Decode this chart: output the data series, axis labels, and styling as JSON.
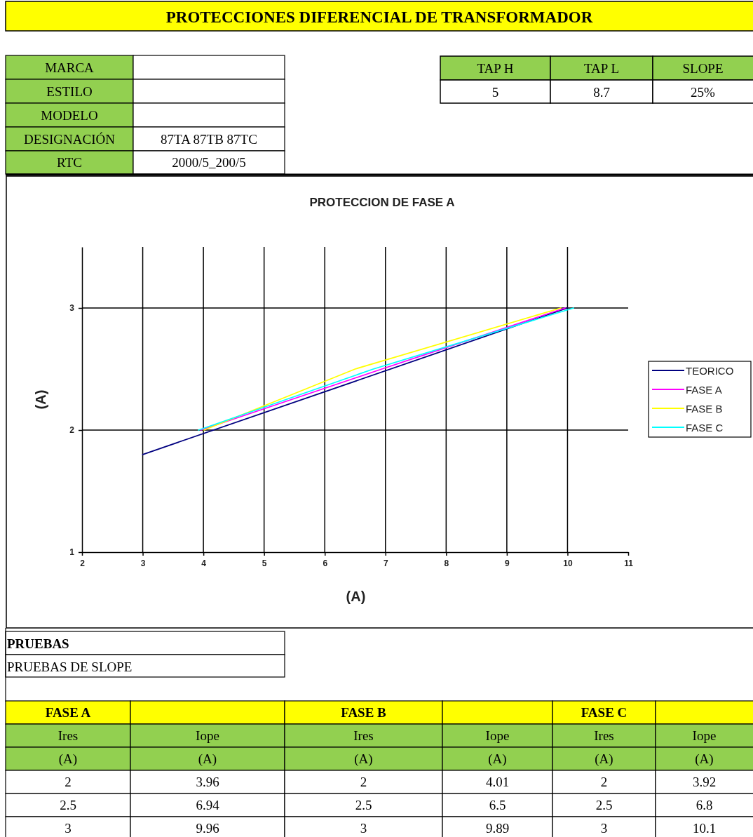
{
  "chart_data": [
    {
      "type": "other",
      "title": "PROTECCIONES DIFERENCIAL DE TRANSFORMADOR",
      "annotations": [
        "MARCA",
        "ESTILO",
        "MODELO",
        "DESIGNACIÓN",
        "RTC",
        "87TA 87TB 87TC",
        "2000/5_200/5",
        "TAP H",
        "TAP L",
        "SLOPE",
        "5",
        "8.7",
        "25%"
      ]
    },
    {
      "type": "line",
      "title": "PROTECCION DE FASE A",
      "xlabel": "(A)",
      "ylabel": "(A)",
      "xlim": [
        2,
        11
      ],
      "ylim": [
        1,
        3.5
      ],
      "xticks": [
        2,
        3,
        4,
        5,
        6,
        7,
        8,
        9,
        10,
        11
      ],
      "yticks": [
        1,
        2,
        3
      ],
      "grid": true,
      "legend": "right",
      "series": [
        {
          "name": "TEORICO",
          "color": "#000080",
          "x": [
            3,
            10
          ],
          "values": [
            1.8,
            3
          ]
        },
        {
          "name": "FASE A",
          "color": "#ff00ff",
          "x": [
            3.96,
            6.94,
            9.96
          ],
          "values": [
            2,
            2.5,
            3
          ]
        },
        {
          "name": "FASE B",
          "color": "#ffff00",
          "x": [
            4.01,
            6.5,
            9.89
          ],
          "values": [
            2,
            2.5,
            3
          ]
        },
        {
          "name": "FASE C",
          "color": "#00ffff",
          "x": [
            3.92,
            6.8,
            10.1
          ],
          "values": [
            2,
            2.5,
            3
          ]
        }
      ]
    },
    {
      "type": "other",
      "title": "PRUEBAS",
      "subtitle": "PRUEBAS DE SLOPE",
      "annotations": [
        "FASE A",
        "FASE B",
        "FASE C",
        "Ires",
        "Iope",
        "Ires",
        "Iope",
        "Ires",
        "Iope",
        "(A)",
        "(A)",
        "(A)",
        "(A)",
        "(A)",
        "(A)",
        "2",
        "3.96",
        "2",
        "4.01",
        "2",
        "3.92",
        "2.5",
        "6.94",
        "2.5",
        "6.5",
        "2.5",
        "6.8",
        "3",
        "9.96",
        "3",
        "9.89",
        "3",
        "10.1"
      ]
    }
  ]
}
